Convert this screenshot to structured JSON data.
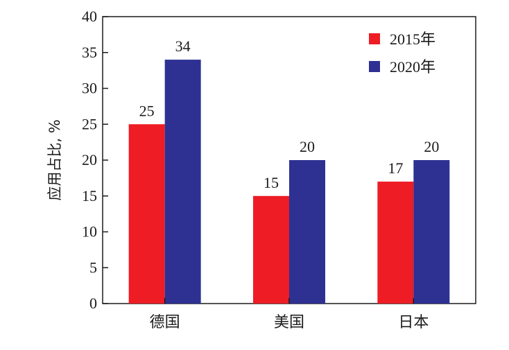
{
  "chart_data": {
    "type": "bar",
    "categories": [
      "德国",
      "美国",
      "日本"
    ],
    "series": [
      {
        "name": "2015年",
        "values": [
          25,
          15,
          17
        ],
        "color": "#ee1c24"
      },
      {
        "name": "2020年",
        "values": [
          34,
          20,
          20
        ],
        "color": "#2e3192"
      }
    ],
    "data_labels": [
      [
        "25",
        "15",
        "17"
      ],
      [
        "34",
        "20",
        "20"
      ]
    ],
    "ylabel": "应用占比, %",
    "xlabel": "",
    "ylim": [
      0,
      40
    ],
    "yticks": [
      "0",
      "5",
      "10",
      "15",
      "20",
      "25",
      "30",
      "35",
      "40"
    ],
    "grid": false,
    "legend_position": "top-right"
  }
}
